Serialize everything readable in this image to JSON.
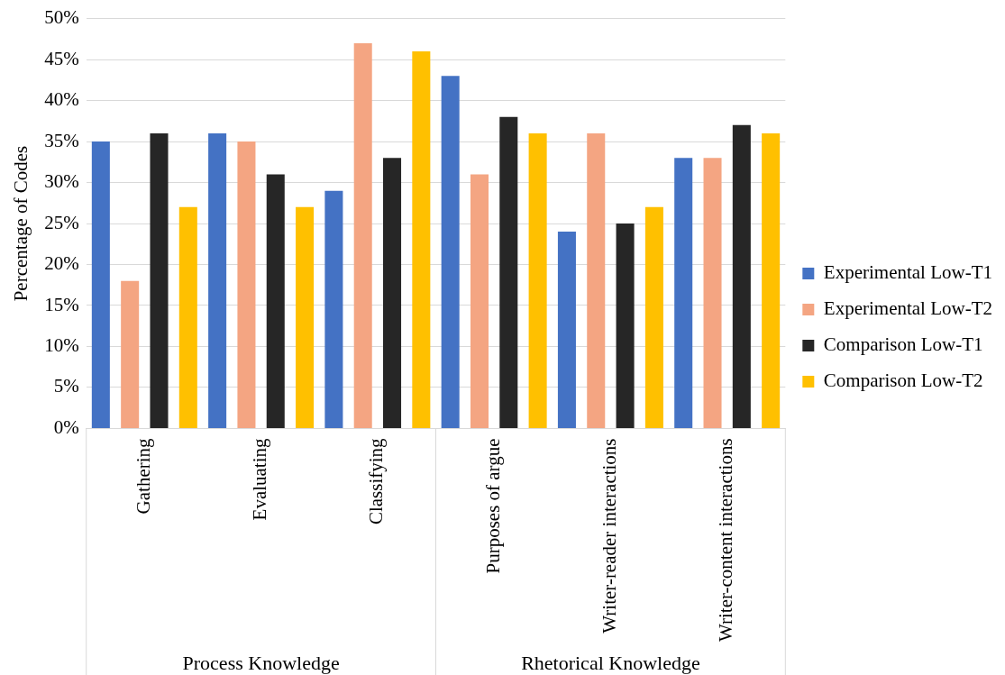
{
  "chart_data": {
    "type": "bar",
    "ylabel": "Percentage of Codes",
    "categories": [
      "Gathering",
      "Evaluating",
      "Classifying",
      "Purposes of argue",
      "Writer-reader interactions",
      "Writer-content interactions"
    ],
    "series": [
      {
        "name": "Experimental Low-T1",
        "color": "#4472c4",
        "values": [
          35,
          36,
          29,
          43,
          24,
          33
        ]
      },
      {
        "name": "Experimental Low-T2",
        "color": "#f4a582",
        "values": [
          18,
          35,
          47,
          31,
          36,
          33
        ]
      },
      {
        "name": "Comparison Low-T1",
        "color": "#262626",
        "values": [
          36,
          31,
          33,
          38,
          25,
          37
        ]
      },
      {
        "name": "Comparison Low-T2",
        "color": "#ffc000",
        "values": [
          27,
          27,
          46,
          36,
          27,
          36
        ]
      }
    ],
    "annotations": [
      "Process Knowledge",
      "Rhetorical Knowledge"
    ],
    "ylim": [
      0,
      50
    ],
    "yticks": [
      {
        "value": 0,
        "label": "0%"
      },
      {
        "value": 5,
        "label": "5%"
      },
      {
        "value": 10,
        "label": "10%"
      },
      {
        "value": 15,
        "label": "15%"
      },
      {
        "value": 20,
        "label": "20%"
      },
      {
        "value": 25,
        "label": "25%"
      },
      {
        "value": 30,
        "label": "30%"
      },
      {
        "value": 35,
        "label": "35%"
      },
      {
        "value": 40,
        "label": "40%"
      },
      {
        "value": 45,
        "label": "45%"
      },
      {
        "value": 50,
        "label": "50%"
      }
    ],
    "grid": "y",
    "legend": "right"
  }
}
